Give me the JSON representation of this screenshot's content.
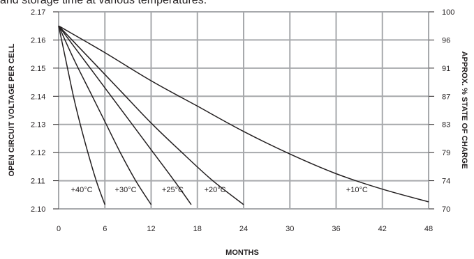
{
  "caption": "and storage time at various temperatures.",
  "chart_data": {
    "type": "line",
    "title": "",
    "xlabel": "MONTHS",
    "ylabel": "OPEN CIRCUIT VOLTAGE PER CELL",
    "y2label": "APPROX. % STATE OF CHARGE",
    "xlim": [
      0,
      48
    ],
    "ylim": [
      2.1,
      2.17
    ],
    "x_ticks": [
      "0",
      "6",
      "12",
      "18",
      "24",
      "30",
      "36",
      "42",
      "48"
    ],
    "y_ticks": [
      "2.10",
      "2.11",
      "2.12",
      "2.13",
      "2.14",
      "2.15",
      "2.16",
      "2.17"
    ],
    "y2_ticks": [
      "70",
      "74",
      "79",
      "83",
      "87",
      "91",
      "96",
      "100"
    ],
    "grid": true,
    "series": [
      {
        "name": "+40°C",
        "x": [
          0,
          1,
          2,
          3,
          4,
          5,
          6
        ],
        "y": [
          2.165,
          2.152,
          2.139,
          2.128,
          2.118,
          2.109,
          2.1015
        ]
      },
      {
        "name": "+30°C",
        "x": [
          0,
          2,
          4,
          6,
          8,
          10,
          12
        ],
        "y": [
          2.165,
          2.153,
          2.142,
          2.131,
          2.12,
          2.11,
          2.1015
        ]
      },
      {
        "name": "+25°C",
        "x": [
          0,
          3,
          6,
          9,
          12,
          15,
          17.2
        ],
        "y": [
          2.165,
          2.154,
          2.143,
          2.132,
          2.121,
          2.11,
          2.1015
        ]
      },
      {
        "name": "+20°C",
        "x": [
          0,
          4,
          8,
          12,
          16,
          20,
          24
        ],
        "y": [
          2.165,
          2.1535,
          2.142,
          2.1305,
          2.12,
          2.11,
          2.1015
        ]
      },
      {
        "name": "+10°C",
        "x": [
          0,
          6,
          12,
          18,
          24,
          30,
          36,
          42,
          48
        ],
        "y": [
          2.165,
          2.1555,
          2.1455,
          2.1365,
          2.1275,
          2.1195,
          2.1125,
          2.107,
          2.1025
        ]
      }
    ],
    "curve_labels": [
      {
        "text": "+40°C",
        "x": 3.0,
        "y": 2.1035
      },
      {
        "text": "+30°C",
        "x": 8.7,
        "y": 2.1035
      },
      {
        "text": "+25°C",
        "x": 14.8,
        "y": 2.1035
      },
      {
        "text": "+20°C",
        "x": 20.3,
        "y": 2.1035
      },
      {
        "text": "+10°C",
        "x": 38.7,
        "y": 2.1035
      }
    ]
  }
}
